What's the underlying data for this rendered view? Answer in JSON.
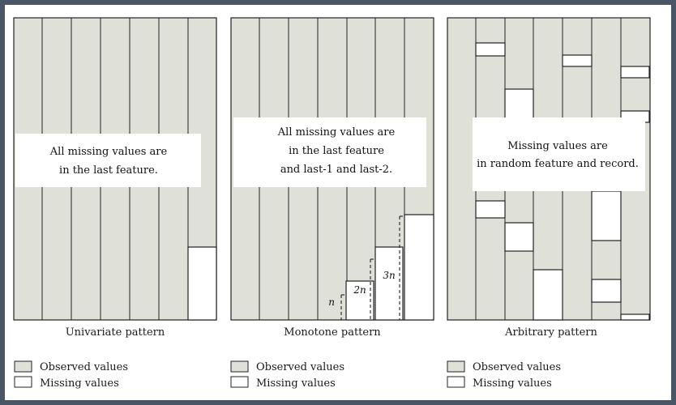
{
  "panels": [
    {
      "caption": "Univariate pattern",
      "description_lines": [
        "All missing values are",
        "in the last feature."
      ]
    },
    {
      "caption": "Monotone pattern",
      "description_lines": [
        "All missing values are",
        "in the last feature",
        "and last-1 and last-2."
      ],
      "dimension_labels": [
        "n",
        "2n",
        "3n"
      ]
    },
    {
      "caption": "Arbitrary pattern",
      "description_lines": [
        "Missing values are",
        "in random feature and record."
      ]
    }
  ],
  "legend": {
    "observed_label": "Observed values",
    "missing_label": "Missing values"
  },
  "colors": {
    "observed": "#dfe1d9",
    "missing": "#ffffff",
    "border": "#222222",
    "frame": "#4a5566"
  }
}
